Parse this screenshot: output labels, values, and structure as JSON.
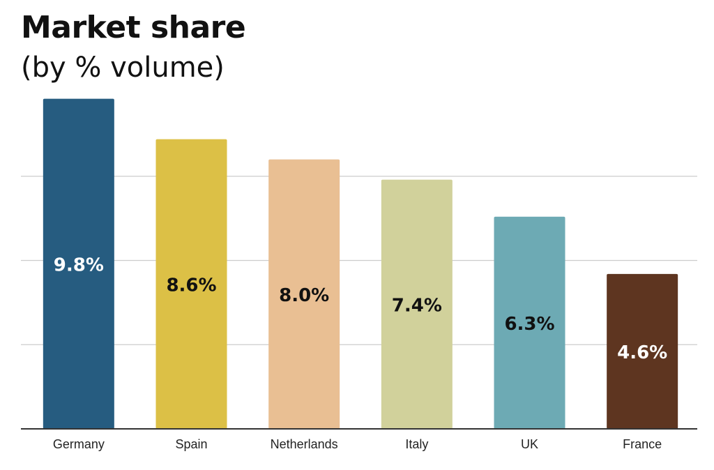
{
  "chart_data": {
    "type": "bar",
    "title": "Market share",
    "subtitle": "(by % volume)",
    "xlabel": "",
    "ylabel": "",
    "categories": [
      "Germany",
      "Spain",
      "Netherlands",
      "Italy",
      "UK",
      "France"
    ],
    "values": [
      9.8,
      8.6,
      8.0,
      7.4,
      6.3,
      4.6
    ],
    "value_labels": [
      "9.8%",
      "8.6%",
      "8.0%",
      "7.4%",
      "6.3%",
      "4.6%"
    ],
    "colors": [
      "#265c80",
      "#dcc046",
      "#e9bf93",
      "#d1d19b",
      "#6daab4",
      "#5e3520"
    ],
    "label_colors": [
      "#ffffff",
      "#111111",
      "#111111",
      "#111111",
      "#111111",
      "#ffffff"
    ],
    "ylim": [
      0,
      10
    ],
    "grid": true,
    "legend": "none"
  }
}
